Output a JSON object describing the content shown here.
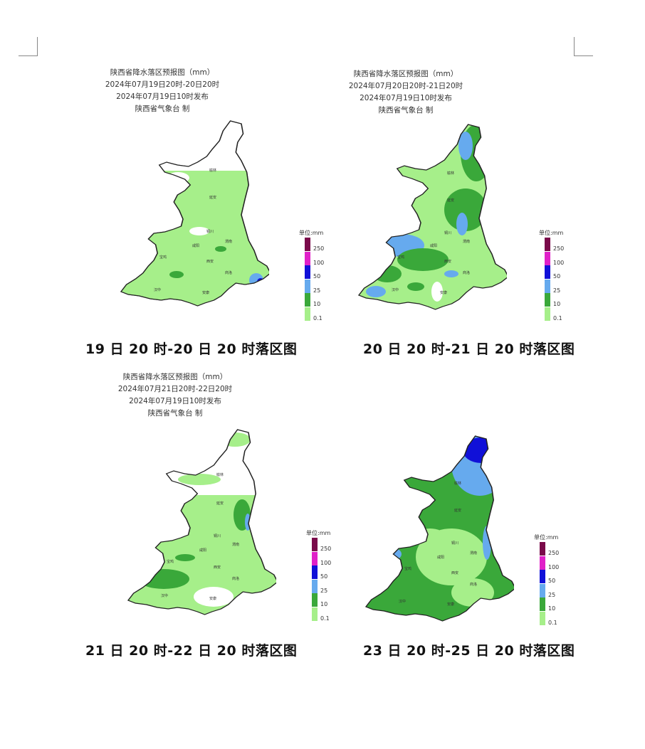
{
  "legend": {
    "unit": "单位:mm",
    "levels": [
      {
        "label": "250",
        "color": "#7a0a4a"
      },
      {
        "label": "100",
        "color": "#e020c8"
      },
      {
        "label": "50",
        "color": "#1010d8"
      },
      {
        "label": "25",
        "color": "#66aaee"
      },
      {
        "label": "10",
        "color": "#3aa83a"
      },
      {
        "label": "0.1",
        "color": "#a6ef8a"
      }
    ]
  },
  "panels": [
    {
      "header": {
        "line1": "陕西省降水落区预报图（mm）",
        "line2": "2024年07月19日20时-20日20时",
        "line3": "2024年07月19日10时发布",
        "line4": "陕西省气象台  制"
      },
      "caption": "19 日 20 时-20 日 20 时落区图",
      "places": [
        "榆林",
        "延安",
        "铜川",
        "渭南",
        "宝鸡",
        "咸阳",
        "西安",
        "商洛",
        "汉中",
        "安康"
      ]
    },
    {
      "header": {
        "line1": "陕西省降水落区预报图（mm）",
        "line2": "2024年07月20日20时-21日20时",
        "line3": "2024年07月19日10时发布",
        "line4": "陕西省气象台  制"
      },
      "caption": "20 日 20 时-21 日 20 时落区图",
      "places": [
        "榆林",
        "延安",
        "铜川",
        "渭南",
        "宝鸡",
        "咸阳",
        "西安",
        "商洛",
        "汉中",
        "安康"
      ]
    },
    {
      "header": {
        "line1": "陕西省降水落区预报图（mm）",
        "line2": "2024年07月21日20时-22日20时",
        "line3": "2024年07月19日10时发布",
        "line4": "陕西省气象台  制"
      },
      "caption": "21 日 20 时-22 日 20 时落区图",
      "places": [
        "榆林",
        "延安",
        "铜川",
        "渭南",
        "宝鸡",
        "咸阳",
        "西安",
        "商洛",
        "汉中",
        "安康"
      ]
    },
    {
      "header": {
        "line1": "",
        "line2": "",
        "line3": "",
        "line4": ""
      },
      "caption": "23 日 20 时-25 日 20 时落区图",
      "places": [
        "榆林",
        "延安",
        "铜川",
        "渭南",
        "宝鸡",
        "咸阳",
        "西安",
        "商洛",
        "汉中",
        "安康"
      ]
    }
  ]
}
